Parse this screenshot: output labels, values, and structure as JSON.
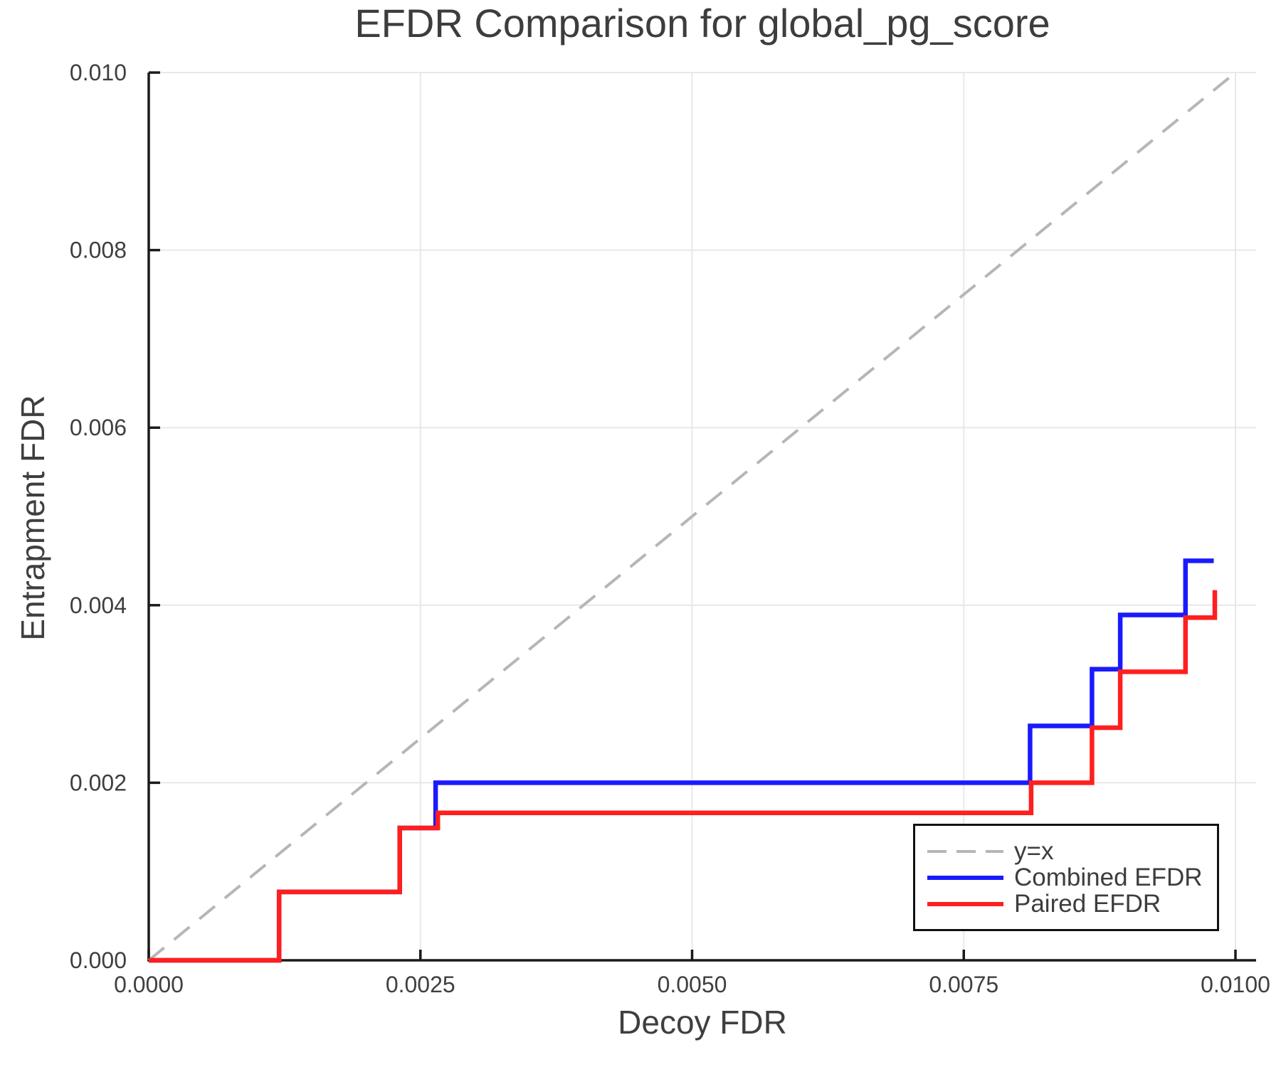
{
  "title": "EFDR Comparison for global_pg_score",
  "colors": {
    "background": "#ffffff",
    "axis_text": "#3f3f3f",
    "title_text": "#3d3d3d",
    "spine": "#1a1a1a",
    "grid": "#e8e8e8",
    "identity_line": "#b6b6b6",
    "combined_line": "#1a1aff",
    "paired_line": "#ff1f1f"
  },
  "chart_data": {
    "type": "line",
    "title": "EFDR Comparison for global_pg_score",
    "xlabel": "Decoy FDR",
    "ylabel": "Entrapment FDR",
    "xlim": [
      0.0,
      0.0102
    ],
    "ylim": [
      0.0,
      0.01003
    ],
    "grid": true,
    "legend_position": "lower right",
    "x_ticks": {
      "values": [
        0.0,
        0.0025,
        0.005,
        0.0075,
        0.01
      ],
      "labels": [
        "0.0000",
        "0.0025",
        "0.0050",
        "0.0075",
        "0.0100"
      ]
    },
    "y_ticks": {
      "values": [
        0.0,
        0.002,
        0.004,
        0.006,
        0.008,
        0.01
      ],
      "labels": [
        "0.000",
        "0.002",
        "0.004",
        "0.006",
        "0.008",
        "0.010"
      ]
    },
    "series": [
      {
        "name": "y=x",
        "style": "dashed",
        "color": "#b6b6b6",
        "width": 4,
        "x": [
          0.0,
          0.01
        ],
        "y": [
          0.0,
          0.01
        ]
      },
      {
        "name": "Combined EFDR",
        "style": "solid",
        "color": "#1a1aff",
        "width": 6.5,
        "x": [
          0.0,
          0.0012,
          0.0012,
          0.00231,
          0.00231,
          0.00264,
          0.00264,
          0.00811,
          0.00811,
          0.00868,
          0.00868,
          0.00894,
          0.00894,
          0.00954,
          0.00954,
          0.0098
        ],
        "y": [
          0.0,
          0.0,
          0.00077,
          0.00077,
          0.00149,
          0.00149,
          0.002,
          0.002,
          0.00264,
          0.00264,
          0.00328,
          0.00328,
          0.00389,
          0.00389,
          0.0045,
          0.0045
        ]
      },
      {
        "name": "Paired EFDR",
        "style": "solid",
        "color": "#ff1f1f",
        "width": 6.5,
        "x": [
          0.0,
          0.0012,
          0.0012,
          0.00231,
          0.00231,
          0.00266,
          0.00266,
          0.00812,
          0.00812,
          0.00868,
          0.00868,
          0.00894,
          0.00894,
          0.00954,
          0.00954,
          0.00981,
          0.00981
        ],
        "y": [
          0.0,
          0.0,
          0.00077,
          0.00077,
          0.00149,
          0.00149,
          0.00166,
          0.00166,
          0.002,
          0.002,
          0.00262,
          0.00262,
          0.00325,
          0.00325,
          0.00386,
          0.00386,
          0.00417
        ]
      }
    ]
  },
  "legend": {
    "entries": [
      {
        "label": "y=x"
      },
      {
        "label": "Combined EFDR"
      },
      {
        "label": "Paired EFDR"
      }
    ]
  }
}
